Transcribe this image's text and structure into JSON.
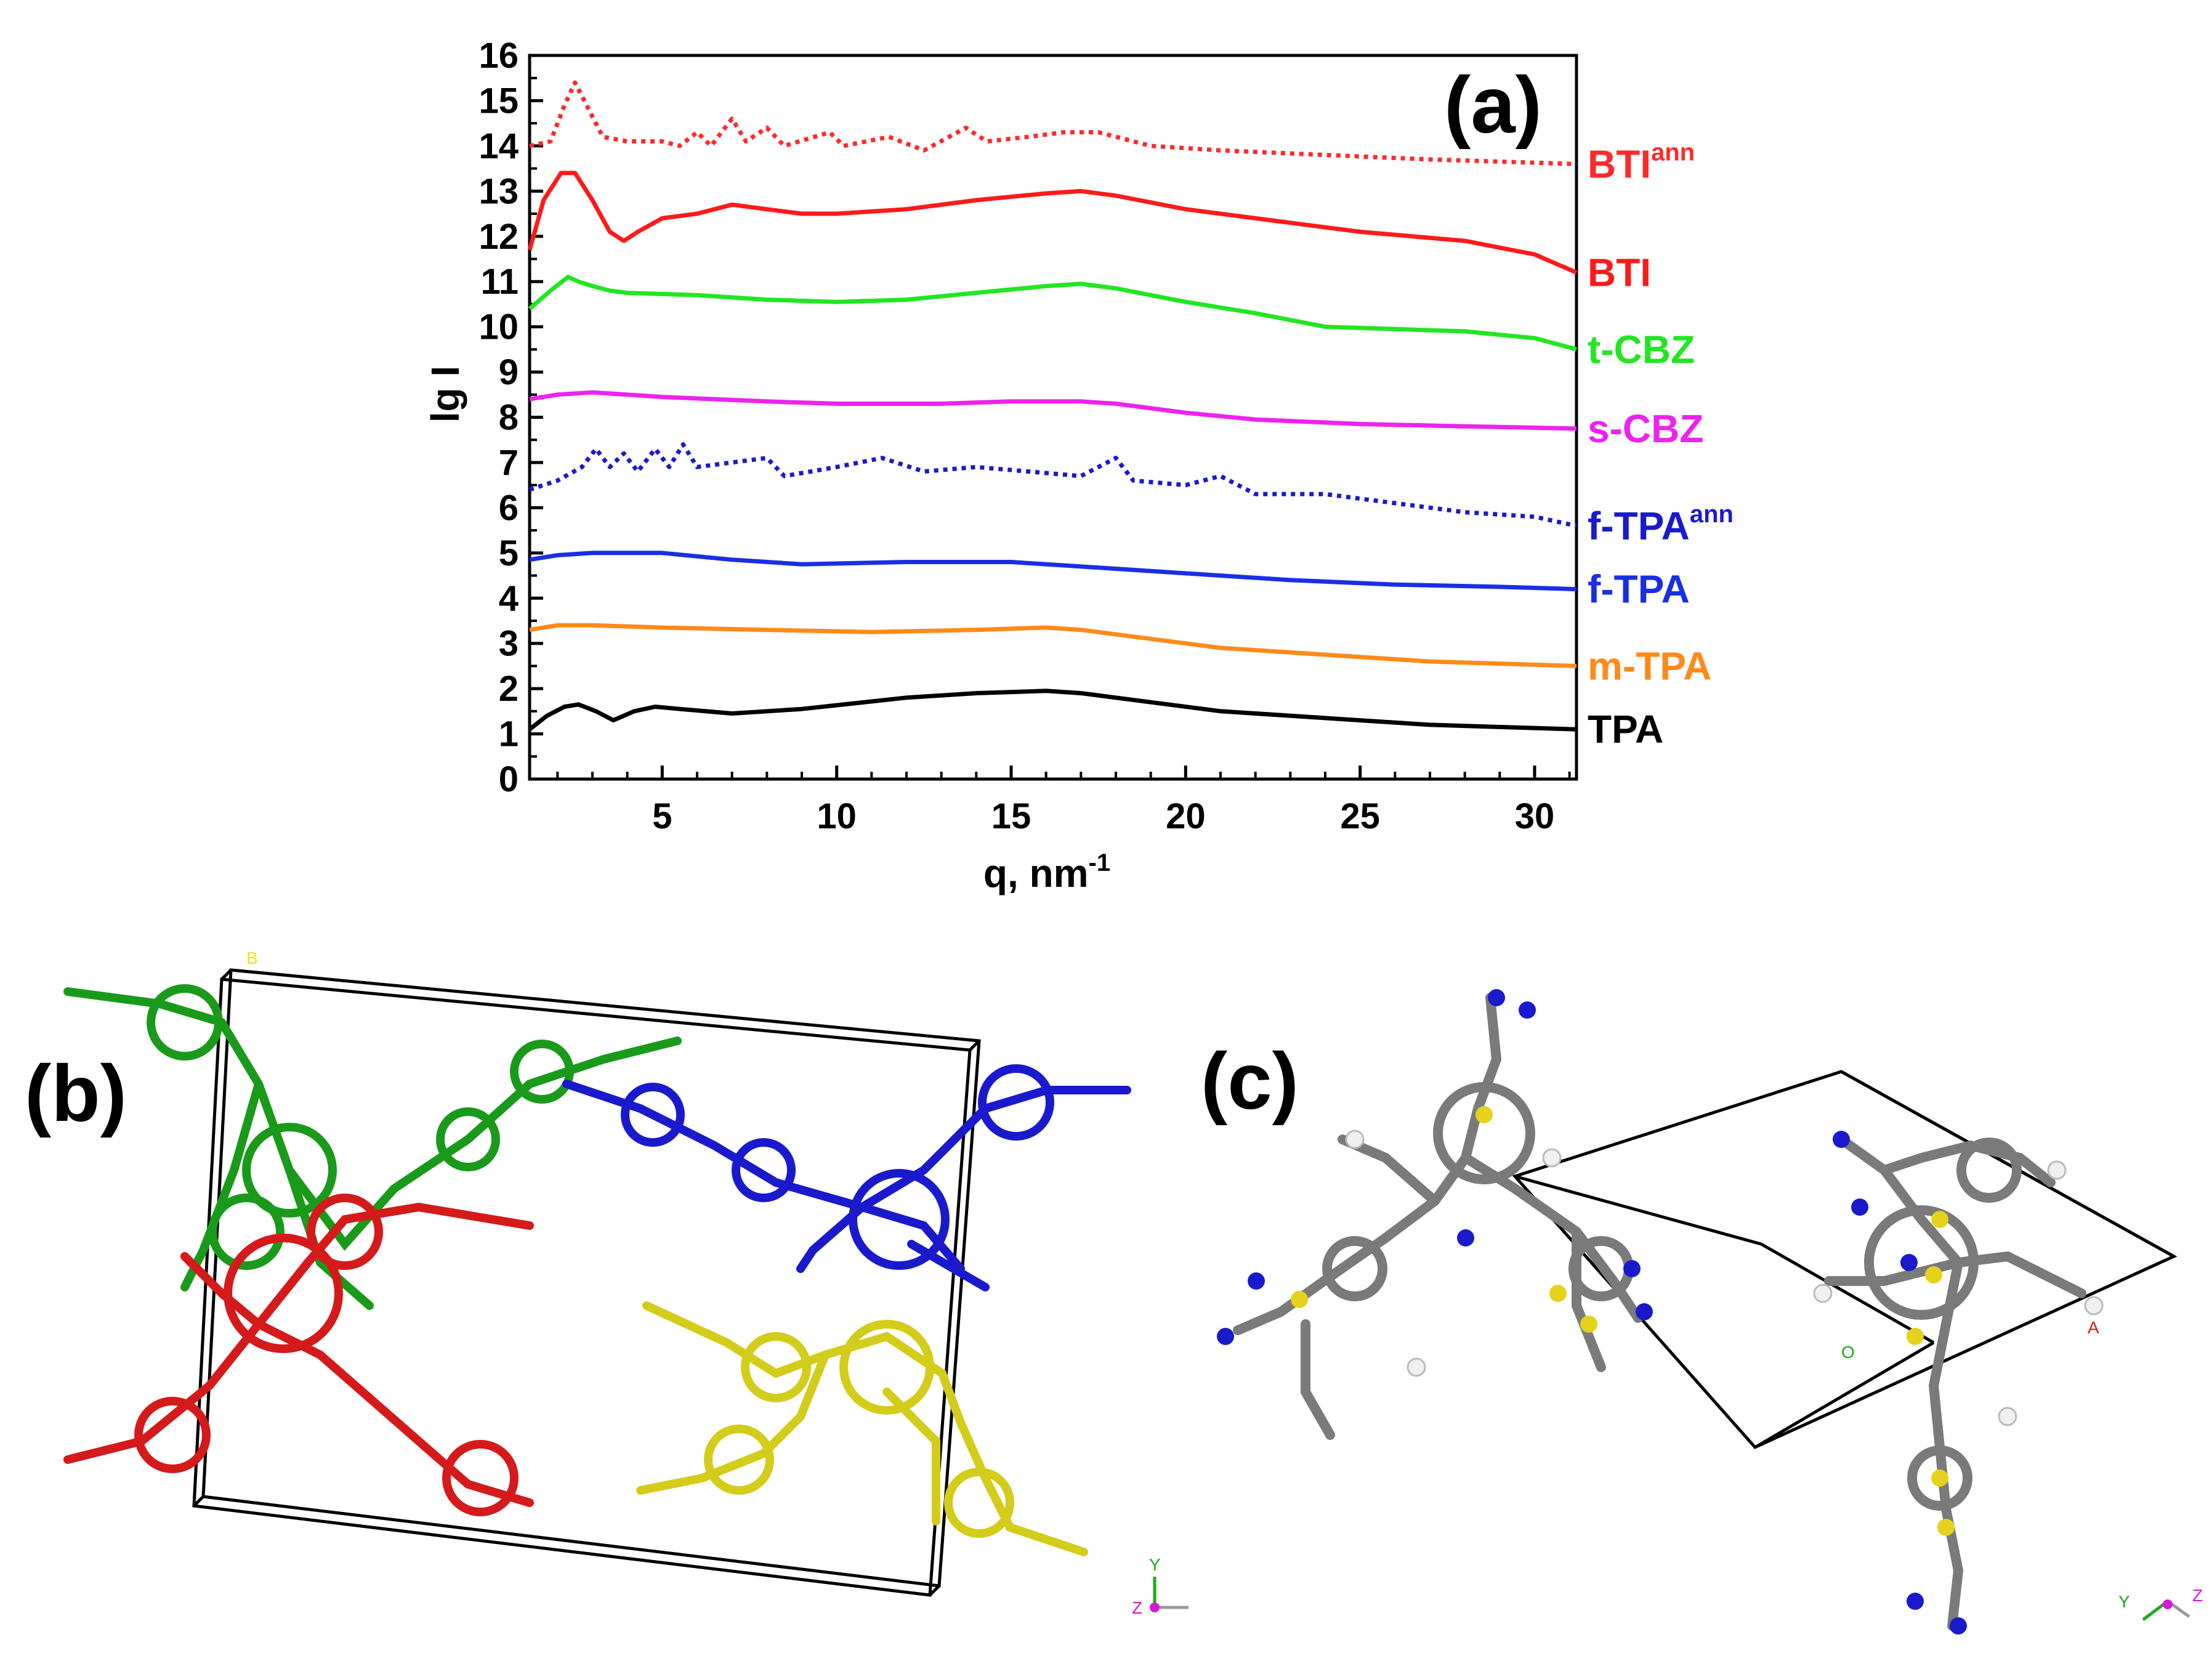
{
  "chart_data": {
    "type": "line",
    "title": "",
    "panel_label": "(a)",
    "xlabel": "q, nm",
    "xlabel_sup": "-1",
    "ylabel": "lg I",
    "xlim": [
      1.2,
      31.2
    ],
    "ylim": [
      0,
      16
    ],
    "xticks": [
      5,
      10,
      15,
      20,
      25,
      30
    ],
    "yticks": [
      0,
      1,
      2,
      3,
      4,
      5,
      6,
      7,
      8,
      9,
      10,
      11,
      12,
      13,
      14,
      15,
      16
    ],
    "grid": false,
    "legend": "inline labels at right end of each curve",
    "series": [
      {
        "name": "BTI",
        "label_sup": "ann",
        "color": "#ff2a2a",
        "style": "dotted",
        "points": [
          [
            1.2,
            14.0
          ],
          [
            1.8,
            14.1
          ],
          [
            2.2,
            14.9
          ],
          [
            2.5,
            15.4
          ],
          [
            2.9,
            14.8
          ],
          [
            3.3,
            14.2
          ],
          [
            4,
            14.1
          ],
          [
            5,
            14.1
          ],
          [
            5.5,
            14.0
          ],
          [
            6.0,
            14.3
          ],
          [
            6.4,
            14.0
          ],
          [
            7.0,
            14.6
          ],
          [
            7.4,
            14.1
          ],
          [
            8.0,
            14.4
          ],
          [
            8.5,
            14.0
          ],
          [
            9.8,
            14.3
          ],
          [
            10.2,
            14.0
          ],
          [
            11.5,
            14.2
          ],
          [
            12.5,
            13.9
          ],
          [
            13.7,
            14.4
          ],
          [
            14.3,
            14.1
          ],
          [
            15.5,
            14.2
          ],
          [
            16.5,
            14.3
          ],
          [
            17.5,
            14.3
          ],
          [
            19,
            14.0
          ],
          [
            21,
            13.9
          ],
          [
            24,
            13.8
          ],
          [
            27,
            13.7
          ],
          [
            31.2,
            13.6
          ]
        ]
      },
      {
        "name": "BTI",
        "label_sup": "",
        "color": "#ff1a1a",
        "style": "solid",
        "points": [
          [
            1.2,
            11.7
          ],
          [
            1.6,
            12.8
          ],
          [
            2.1,
            13.4
          ],
          [
            2.5,
            13.4
          ],
          [
            3.0,
            12.8
          ],
          [
            3.5,
            12.1
          ],
          [
            3.9,
            11.9
          ],
          [
            4.3,
            12.1
          ],
          [
            5,
            12.4
          ],
          [
            6,
            12.5
          ],
          [
            7,
            12.7
          ],
          [
            8,
            12.6
          ],
          [
            9,
            12.5
          ],
          [
            10,
            12.5
          ],
          [
            12,
            12.6
          ],
          [
            14,
            12.8
          ],
          [
            16,
            12.95
          ],
          [
            17,
            13.0
          ],
          [
            18,
            12.9
          ],
          [
            20,
            12.6
          ],
          [
            22,
            12.4
          ],
          [
            25,
            12.1
          ],
          [
            28,
            11.9
          ],
          [
            30,
            11.6
          ],
          [
            31.2,
            11.2
          ]
        ]
      },
      {
        "name": "t-CBZ",
        "label_sup": "",
        "color": "#22e622",
        "style": "solid",
        "points": [
          [
            1.2,
            10.4
          ],
          [
            1.8,
            10.8
          ],
          [
            2.3,
            11.1
          ],
          [
            2.6,
            11.0
          ],
          [
            3.0,
            10.9
          ],
          [
            3.5,
            10.8
          ],
          [
            4,
            10.75
          ],
          [
            6,
            10.7
          ],
          [
            8,
            10.6
          ],
          [
            10,
            10.55
          ],
          [
            12,
            10.6
          ],
          [
            14,
            10.75
          ],
          [
            16,
            10.9
          ],
          [
            17,
            10.95
          ],
          [
            18,
            10.85
          ],
          [
            20,
            10.55
          ],
          [
            22,
            10.3
          ],
          [
            24,
            10.0
          ],
          [
            26,
            9.95
          ],
          [
            28,
            9.9
          ],
          [
            30,
            9.75
          ],
          [
            31.2,
            9.5
          ]
        ]
      },
      {
        "name": "s-CBZ",
        "label_sup": "",
        "color": "#ee22ee",
        "style": "solid",
        "points": [
          [
            1.2,
            8.4
          ],
          [
            2,
            8.5
          ],
          [
            3,
            8.55
          ],
          [
            5,
            8.45
          ],
          [
            8,
            8.35
          ],
          [
            10,
            8.3
          ],
          [
            13,
            8.3
          ],
          [
            15,
            8.35
          ],
          [
            17,
            8.35
          ],
          [
            18,
            8.3
          ],
          [
            20,
            8.1
          ],
          [
            22,
            7.95
          ],
          [
            25,
            7.85
          ],
          [
            28,
            7.8
          ],
          [
            31.2,
            7.75
          ]
        ]
      },
      {
        "name": "f-TPA",
        "label_sup": "ann",
        "color": "#1a1acc",
        "style": "dotted",
        "points": [
          [
            1.2,
            6.4
          ],
          [
            2,
            6.6
          ],
          [
            2.7,
            6.9
          ],
          [
            3.1,
            7.3
          ],
          [
            3.5,
            6.9
          ],
          [
            3.9,
            7.2
          ],
          [
            4.3,
            6.8
          ],
          [
            4.8,
            7.3
          ],
          [
            5.2,
            6.9
          ],
          [
            5.6,
            7.4
          ],
          [
            6.0,
            6.9
          ],
          [
            7,
            7.0
          ],
          [
            8,
            7.1
          ],
          [
            8.5,
            6.7
          ],
          [
            10,
            6.9
          ],
          [
            11.3,
            7.1
          ],
          [
            12.5,
            6.8
          ],
          [
            14,
            6.9
          ],
          [
            15.5,
            6.8
          ],
          [
            17,
            6.7
          ],
          [
            18,
            7.1
          ],
          [
            18.5,
            6.6
          ],
          [
            20,
            6.5
          ],
          [
            21,
            6.7
          ],
          [
            22,
            6.3
          ],
          [
            24,
            6.3
          ],
          [
            26,
            6.1
          ],
          [
            28,
            5.9
          ],
          [
            30,
            5.8
          ],
          [
            31.2,
            5.6
          ]
        ]
      },
      {
        "name": "f-TPA",
        "label_sup": "",
        "color": "#1a2ee6",
        "style": "solid",
        "points": [
          [
            1.2,
            4.85
          ],
          [
            2,
            4.95
          ],
          [
            3,
            5.0
          ],
          [
            5,
            5.0
          ],
          [
            7,
            4.85
          ],
          [
            9,
            4.75
          ],
          [
            12,
            4.8
          ],
          [
            15,
            4.8
          ],
          [
            18,
            4.65
          ],
          [
            20,
            4.55
          ],
          [
            23,
            4.4
          ],
          [
            26,
            4.3
          ],
          [
            29,
            4.25
          ],
          [
            31.2,
            4.2
          ]
        ]
      },
      {
        "name": "m-TPA",
        "label_sup": "",
        "color": "#ff8a1a",
        "style": "solid",
        "points": [
          [
            1.2,
            3.3
          ],
          [
            2,
            3.4
          ],
          [
            3,
            3.4
          ],
          [
            5,
            3.35
          ],
          [
            8,
            3.3
          ],
          [
            11,
            3.25
          ],
          [
            14,
            3.3
          ],
          [
            16,
            3.35
          ],
          [
            17,
            3.3
          ],
          [
            19,
            3.1
          ],
          [
            21,
            2.9
          ],
          [
            24,
            2.75
          ],
          [
            27,
            2.6
          ],
          [
            31.2,
            2.5
          ]
        ]
      },
      {
        "name": "TPA",
        "label_sup": "",
        "color": "#000000",
        "style": "solid",
        "points": [
          [
            1.2,
            1.1
          ],
          [
            1.7,
            1.4
          ],
          [
            2.2,
            1.6
          ],
          [
            2.6,
            1.65
          ],
          [
            3.1,
            1.5
          ],
          [
            3.6,
            1.3
          ],
          [
            4.2,
            1.5
          ],
          [
            4.8,
            1.6
          ],
          [
            5.5,
            1.55
          ],
          [
            7,
            1.45
          ],
          [
            9,
            1.55
          ],
          [
            12,
            1.8
          ],
          [
            14,
            1.9
          ],
          [
            16,
            1.95
          ],
          [
            17,
            1.9
          ],
          [
            19,
            1.7
          ],
          [
            21,
            1.5
          ],
          [
            24,
            1.35
          ],
          [
            27,
            1.2
          ],
          [
            31.2,
            1.1
          ]
        ]
      }
    ]
  },
  "panel_b": {
    "label": "(b)",
    "cell_axis_label": "B",
    "axis_y": "Y",
    "axis_z": "Z",
    "molecule_colors": [
      "#2ecc2e",
      "#1a1acc",
      "#e62e2e",
      "#e6e62e"
    ]
  },
  "panel_c": {
    "label": "(c)",
    "cell_axis_o": "O",
    "cell_axis_a": "A",
    "axis_y": "Y",
    "axis_z": "Z",
    "atom_colors": {
      "carbon": "#8a8a8a",
      "hydrogen": "#f0f0f0",
      "nitrogen": "#1a1acc",
      "sulfur": "#e6d21a"
    }
  }
}
